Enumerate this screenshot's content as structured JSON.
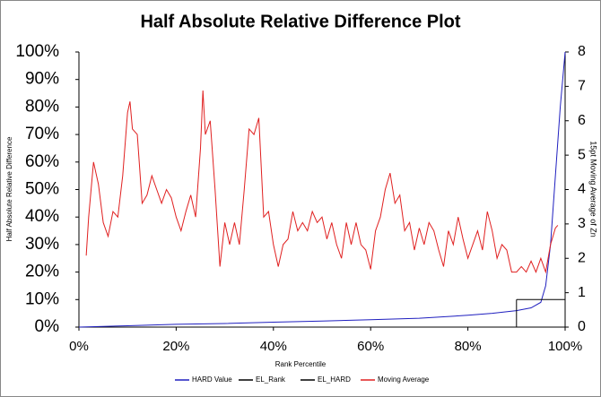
{
  "chart_data": {
    "type": "line",
    "title": "Half Absolute Relative Difference Plot",
    "xlabel": "Rank Percentile",
    "ylabel": "Half Absolute Relative Difference",
    "y2label": "15pt Moving Average of Zn",
    "xlim": [
      0,
      100
    ],
    "xticks": [
      {
        "value": 0,
        "label": "0%"
      },
      {
        "value": 20,
        "label": "20%"
      },
      {
        "value": 40,
        "label": "40%"
      },
      {
        "value": 60,
        "label": "60%"
      },
      {
        "value": 80,
        "label": "80%"
      },
      {
        "value": 100,
        "label": "100%"
      }
    ],
    "ylim": [
      0,
      100
    ],
    "yticks": [
      {
        "value": 0,
        "label": "0%"
      },
      {
        "value": 10,
        "label": "10%"
      },
      {
        "value": 20,
        "label": "20%"
      },
      {
        "value": 30,
        "label": "30%"
      },
      {
        "value": 40,
        "label": "40%"
      },
      {
        "value": 50,
        "label": "50%"
      },
      {
        "value": 60,
        "label": "60%"
      },
      {
        "value": 70,
        "label": "70%"
      },
      {
        "value": 80,
        "label": "80%"
      },
      {
        "value": 90,
        "label": "90%"
      },
      {
        "value": 100,
        "label": "100%"
      }
    ],
    "y2lim": [
      0,
      8
    ],
    "y2ticks": [
      0,
      1,
      2,
      3,
      4,
      5,
      6,
      7,
      8
    ],
    "grid": false,
    "legend": "bottom",
    "series": [
      {
        "name": "HARD Value",
        "color": "#1f1fbf",
        "x": [
          0,
          10,
          20,
          30,
          40,
          50,
          60,
          70,
          80,
          85,
          90,
          93,
          95,
          96,
          97,
          98,
          99,
          100
        ],
        "values": [
          0,
          0.5,
          1,
          1.3,
          1.8,
          2.2,
          2.7,
          3.2,
          4.3,
          5,
          6,
          7,
          9,
          15,
          30,
          55,
          80,
          100
        ]
      },
      {
        "name": "EL_Rank",
        "color": "#000000",
        "x": [
          90,
          90
        ],
        "values": [
          0,
          10
        ]
      },
      {
        "name": "EL_HARD",
        "color": "#000000",
        "x": [
          90,
          100
        ],
        "values": [
          10,
          10
        ]
      },
      {
        "name": "Moving Average",
        "color": "#e02020",
        "axis": "y2",
        "x": [
          1.5,
          2,
          3,
          4,
          5,
          6,
          7,
          8,
          9,
          10,
          10.5,
          11,
          12,
          13,
          14,
          15,
          16,
          17,
          18,
          19,
          20,
          21,
          22,
          23,
          24,
          25,
          25.5,
          26,
          27,
          28,
          29,
          30,
          31,
          32,
          33,
          34,
          35,
          36,
          37,
          38,
          39,
          40,
          41,
          42,
          43,
          44,
          45,
          46,
          47,
          48,
          49,
          50,
          51,
          52,
          53,
          54,
          55,
          56,
          57,
          58,
          59,
          60,
          61,
          62,
          63,
          64,
          65,
          66,
          67,
          68,
          69,
          70,
          71,
          72,
          73,
          74,
          75,
          76,
          77,
          78,
          79,
          80,
          81,
          82,
          83,
          84,
          85,
          86,
          87,
          88,
          89,
          90,
          91,
          92,
          93,
          94,
          95,
          96,
          97,
          98,
          98.5
        ],
        "values": [
          2.08,
          3.2,
          4.8,
          4.16,
          3.04,
          2.64,
          3.36,
          3.2,
          4.4,
          6.24,
          6.56,
          5.76,
          5.6,
          3.6,
          3.84,
          4.4,
          4,
          3.6,
          4,
          3.76,
          3.2,
          2.8,
          3.36,
          3.84,
          3.2,
          5.2,
          6.88,
          5.6,
          6,
          4,
          1.76,
          3.04,
          2.4,
          3.04,
          2.4,
          4,
          5.76,
          5.6,
          6.08,
          3.2,
          3.36,
          2.4,
          1.76,
          2.4,
          2.56,
          3.36,
          2.8,
          3.04,
          2.8,
          3.36,
          3.04,
          3.2,
          2.56,
          3.04,
          2.4,
          2,
          3.04,
          2.4,
          3.04,
          2.4,
          2.24,
          1.68,
          2.8,
          3.2,
          4,
          4.48,
          3.6,
          3.84,
          2.8,
          3.04,
          2.24,
          2.88,
          2.4,
          3.04,
          2.8,
          2.24,
          1.76,
          2.8,
          2.4,
          3.2,
          2.56,
          2,
          2.4,
          2.8,
          2.24,
          3.36,
          2.8,
          2,
          2.4,
          2.24,
          1.6,
          1.6,
          1.76,
          1.6,
          1.92,
          1.6,
          2,
          1.6,
          2.4,
          2.88,
          2.96
        ]
      }
    ]
  }
}
